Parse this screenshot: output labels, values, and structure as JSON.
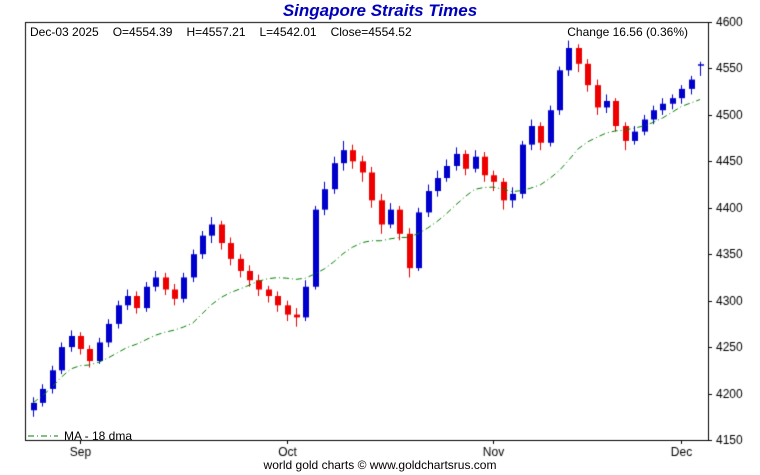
{
  "header": {
    "date": "Dec-03 2025",
    "open": "O=4554.39",
    "high": "H=4557.21",
    "low": "L=4542.01",
    "close": "Close=4554.52",
    "change": "Change 16.56 (0.36%)"
  },
  "footer": {
    "copyright": "world gold charts © www.goldchartsrus.com"
  },
  "chart_data": {
    "type": "candlestick",
    "title": "Singapore Straits Times",
    "xlabel": "",
    "ylabel": "",
    "ylim": [
      4150,
      4600
    ],
    "y_ticks": [
      4150,
      4200,
      4250,
      4300,
      4350,
      4400,
      4450,
      4500,
      4550,
      4600
    ],
    "x_tick_labels": [
      "Sep",
      "Oct",
      "Nov",
      "Dec"
    ],
    "x_tick_indices": [
      5,
      27,
      49,
      69
    ],
    "grid": "off",
    "legend_position": "bottom-left",
    "ma": {
      "label": "MA - 18 dma",
      "period": 18
    },
    "colors": {
      "up": "#0000cc",
      "down": "#ee0000",
      "ma": "#008000",
      "title": "#0000bb",
      "axis": "#000000"
    },
    "last_bar": {
      "date": "Dec-03 2025",
      "open": 4554.39,
      "high": 4557.21,
      "low": 4542.01,
      "close": 4554.52,
      "change": 16.56,
      "change_pct": 0.36
    },
    "candles": [
      [
        4182,
        4196,
        4175,
        4190
      ],
      [
        4190,
        4210,
        4186,
        4205
      ],
      [
        4205,
        4230,
        4200,
        4225
      ],
      [
        4225,
        4255,
        4221,
        4250
      ],
      [
        4250,
        4268,
        4245,
        4262
      ],
      [
        4262,
        4266,
        4242,
        4248
      ],
      [
        4248,
        4252,
        4228,
        4235
      ],
      [
        4235,
        4260,
        4232,
        4255
      ],
      [
        4255,
        4280,
        4250,
        4275
      ],
      [
        4275,
        4300,
        4270,
        4295
      ],
      [
        4295,
        4312,
        4290,
        4305
      ],
      [
        4305,
        4310,
        4286,
        4292
      ],
      [
        4292,
        4320,
        4288,
        4315
      ],
      [
        4315,
        4332,
        4310,
        4325
      ],
      [
        4325,
        4330,
        4306,
        4312
      ],
      [
        4312,
        4318,
        4295,
        4302
      ],
      [
        4302,
        4330,
        4298,
        4325
      ],
      [
        4325,
        4355,
        4320,
        4350
      ],
      [
        4350,
        4375,
        4345,
        4370
      ],
      [
        4370,
        4390,
        4362,
        4382
      ],
      [
        4382,
        4386,
        4355,
        4362
      ],
      [
        4362,
        4368,
        4338,
        4345
      ],
      [
        4345,
        4350,
        4325,
        4332
      ],
      [
        4332,
        4338,
        4315,
        4322
      ],
      [
        4322,
        4328,
        4305,
        4312
      ],
      [
        4312,
        4316,
        4298,
        4305
      ],
      [
        4305,
        4310,
        4288,
        4295
      ],
      [
        4295,
        4300,
        4278,
        4285
      ],
      [
        4285,
        4292,
        4272,
        4282
      ],
      [
        4282,
        4322,
        4278,
        4315
      ],
      [
        4315,
        4402,
        4312,
        4398
      ],
      [
        4398,
        4428,
        4392,
        4420
      ],
      [
        4420,
        4455,
        4415,
        4448
      ],
      [
        4448,
        4472,
        4440,
        4462
      ],
      [
        4462,
        4468,
        4442,
        4450
      ],
      [
        4450,
        4456,
        4428,
        4438
      ],
      [
        4438,
        4444,
        4400,
        4408
      ],
      [
        4408,
        4415,
        4372,
        4382
      ],
      [
        4382,
        4405,
        4378,
        4398
      ],
      [
        4398,
        4402,
        4365,
        4372
      ],
      [
        4372,
        4378,
        4325,
        4335
      ],
      [
        4335,
        4400,
        4332,
        4395
      ],
      [
        4395,
        4425,
        4390,
        4418
      ],
      [
        4418,
        4440,
        4412,
        4432
      ],
      [
        4432,
        4452,
        4428,
        4445
      ],
      [
        4445,
        4465,
        4440,
        4458
      ],
      [
        4458,
        4462,
        4435,
        4442
      ],
      [
        4442,
        4462,
        4438,
        4455
      ],
      [
        4455,
        4460,
        4428,
        4435
      ],
      [
        4435,
        4440,
        4418,
        4428
      ],
      [
        4428,
        4432,
        4398,
        4408
      ],
      [
        4408,
        4422,
        4400,
        4415
      ],
      [
        4415,
        4472,
        4410,
        4468
      ],
      [
        4468,
        4495,
        4462,
        4488
      ],
      [
        4488,
        4492,
        4462,
        4470
      ],
      [
        4470,
        4510,
        4466,
        4505
      ],
      [
        4505,
        4552,
        4500,
        4548
      ],
      [
        4548,
        4580,
        4542,
        4572
      ],
      [
        4572,
        4576,
        4546,
        4555
      ],
      [
        4555,
        4560,
        4525,
        4532
      ],
      [
        4532,
        4538,
        4500,
        4508
      ],
      [
        4508,
        4522,
        4502,
        4515
      ],
      [
        4515,
        4518,
        4482,
        4488
      ],
      [
        4488,
        4492,
        4462,
        4472
      ],
      [
        4472,
        4488,
        4468,
        4482
      ],
      [
        4482,
        4500,
        4478,
        4495
      ],
      [
        4495,
        4510,
        4490,
        4505
      ],
      [
        4505,
        4518,
        4500,
        4512
      ],
      [
        4512,
        4522,
        4506,
        4518
      ],
      [
        4518,
        4532,
        4512,
        4528
      ],
      [
        4528,
        4542,
        4522,
        4538
      ],
      [
        4554.39,
        4557.21,
        4542.01,
        4554.52
      ]
    ]
  }
}
